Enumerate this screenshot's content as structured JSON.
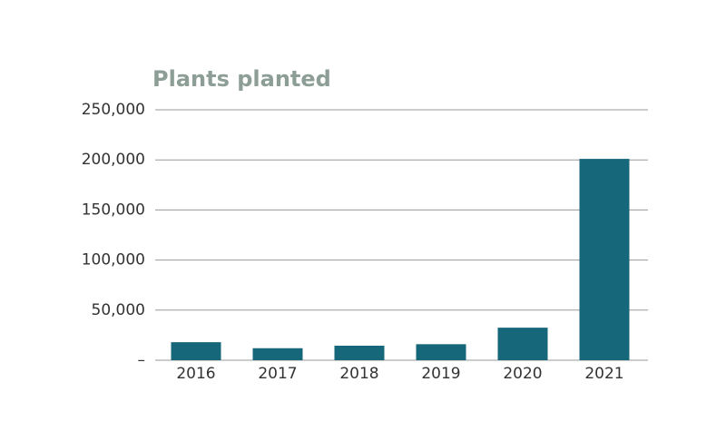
{
  "chart_data": {
    "type": "bar",
    "title": "Plants planted",
    "categories": [
      "2016",
      "2017",
      "2018",
      "2019",
      "2020",
      "2021"
    ],
    "values": [
      18000,
      12000,
      14500,
      16000,
      32500,
      201000
    ],
    "color": "#17677a",
    "ylim": [
      0,
      250000
    ],
    "yticks": [
      {
        "value": 0,
        "label": "–"
      },
      {
        "value": 50000,
        "label": "50,000"
      },
      {
        "value": 100000,
        "label": "100,000"
      },
      {
        "value": 150000,
        "label": "150,000"
      },
      {
        "value": 200000,
        "label": "200,000"
      },
      {
        "value": 250000,
        "label": "250,000"
      }
    ],
    "grid": true
  }
}
